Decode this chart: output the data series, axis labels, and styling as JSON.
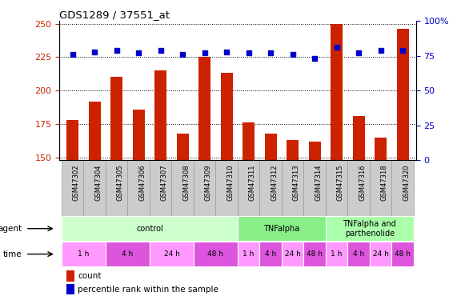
{
  "title": "GDS1289 / 37551_at",
  "samples": [
    "GSM47302",
    "GSM47304",
    "GSM47305",
    "GSM47306",
    "GSM47307",
    "GSM47308",
    "GSM47309",
    "GSM47310",
    "GSM47311",
    "GSM47312",
    "GSM47313",
    "GSM47314",
    "GSM47315",
    "GSM47316",
    "GSM47318",
    "GSM47320"
  ],
  "counts": [
    178,
    192,
    210,
    186,
    215,
    168,
    225,
    213,
    176,
    168,
    163,
    162,
    250,
    181,
    165,
    246
  ],
  "percentiles": [
    76,
    78,
    79,
    77,
    79,
    76,
    77,
    78,
    77,
    77,
    76,
    73,
    81,
    77,
    79,
    79
  ],
  "ylim_left": [
    148,
    252
  ],
  "ylim_right": [
    0,
    100
  ],
  "yticks_left": [
    150,
    175,
    200,
    225,
    250
  ],
  "yticks_right": [
    0,
    25,
    50,
    75,
    100
  ],
  "bar_color": "#cc2200",
  "dot_color": "#0000cc",
  "grid_color": "#000000",
  "agent_groups": [
    {
      "label": "control",
      "start": 0,
      "end": 8,
      "color": "#ccffcc"
    },
    {
      "label": "TNFalpha",
      "start": 8,
      "end": 12,
      "color": "#88ee88"
    },
    {
      "label": "TNFalpha and\nparthenolide",
      "start": 12,
      "end": 16,
      "color": "#aaffaa"
    }
  ],
  "time_groups": [
    {
      "label": "1 h",
      "start": 0,
      "end": 2,
      "color": "#ff99ff"
    },
    {
      "label": "4 h",
      "start": 2,
      "end": 4,
      "color": "#dd55dd"
    },
    {
      "label": "24 h",
      "start": 4,
      "end": 6,
      "color": "#ff99ff"
    },
    {
      "label": "48 h",
      "start": 6,
      "end": 8,
      "color": "#dd55dd"
    },
    {
      "label": "1 h",
      "start": 8,
      "end": 9,
      "color": "#ff99ff"
    },
    {
      "label": "4 h",
      "start": 9,
      "end": 10,
      "color": "#dd55dd"
    },
    {
      "label": "24 h",
      "start": 10,
      "end": 11,
      "color": "#ff99ff"
    },
    {
      "label": "48 h",
      "start": 11,
      "end": 12,
      "color": "#dd55dd"
    },
    {
      "label": "1 h",
      "start": 12,
      "end": 13,
      "color": "#ff99ff"
    },
    {
      "label": "4 h",
      "start": 13,
      "end": 14,
      "color": "#dd55dd"
    },
    {
      "label": "24 h",
      "start": 14,
      "end": 15,
      "color": "#ff99ff"
    },
    {
      "label": "48 h",
      "start": 15,
      "end": 16,
      "color": "#dd55dd"
    }
  ],
  "legend_count_label": "count",
  "legend_pct_label": "percentile rank within the sample",
  "sample_box_color": "#cccccc",
  "sample_box_edge": "#999999"
}
